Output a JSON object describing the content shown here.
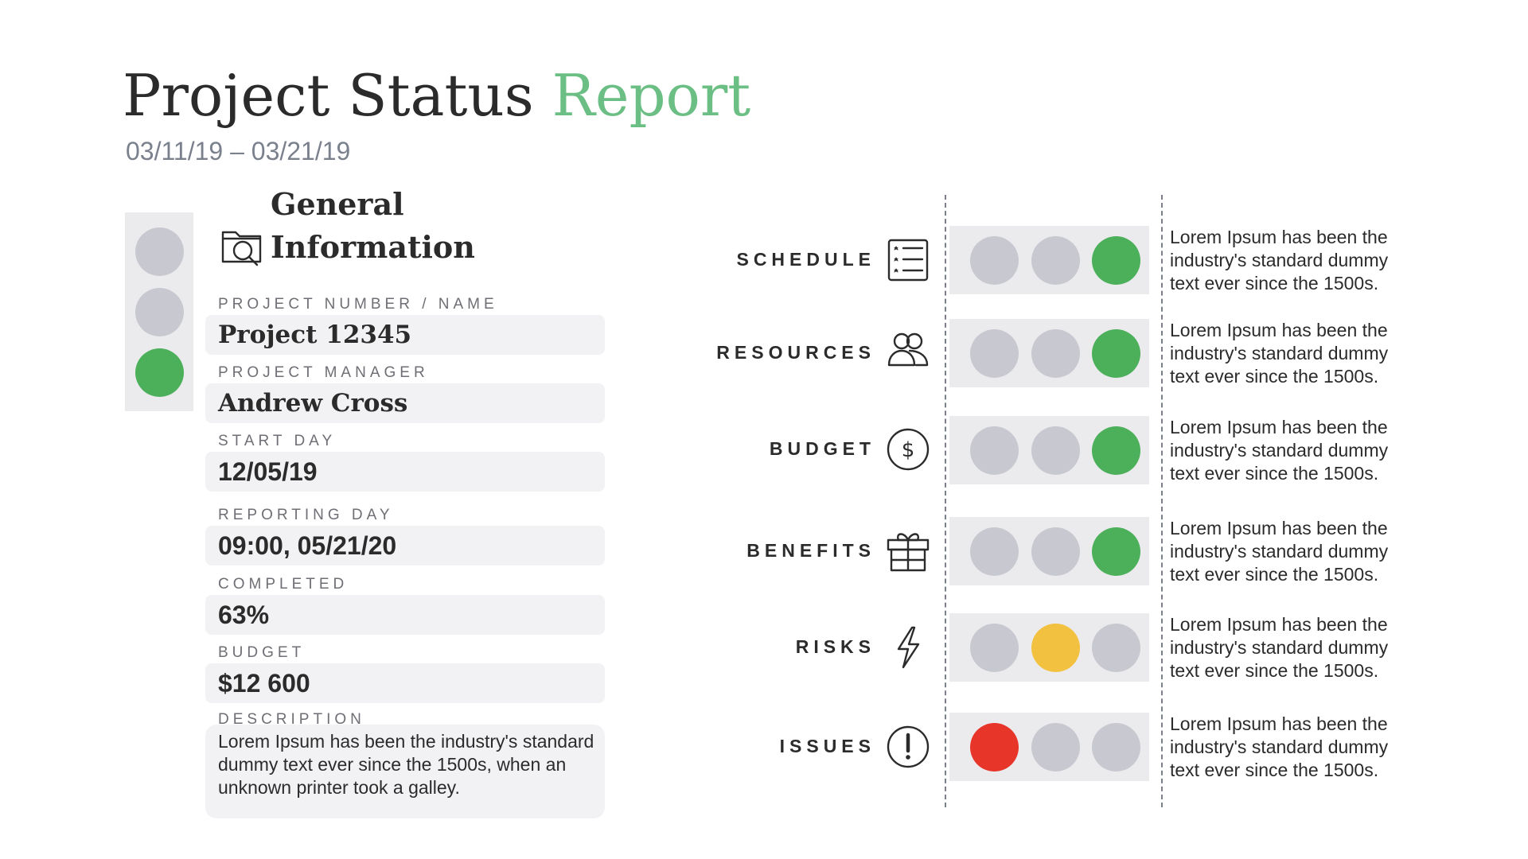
{
  "header": {
    "title_main": "Project Status",
    "title_accent": "Report",
    "date_range": "03/11/19 – 03/21/19"
  },
  "colors": {
    "accent": "#6cbf84",
    "light_off": "#c8c8d0",
    "green": "#4caf5a",
    "yellow": "#f2c13f",
    "red": "#e8352a"
  },
  "overall_status": {
    "lit": "green"
  },
  "general": {
    "heading_line1": "General",
    "heading_line2": "Information",
    "icon": "folder-search-icon",
    "fields": [
      {
        "label": "PROJECT NUMBER / NAME",
        "value": "Project 12345"
      },
      {
        "label": "PROJECT MANAGER",
        "value": "Andrew Cross"
      },
      {
        "label": "START DAY",
        "value": "12/05/19"
      },
      {
        "label": "REPORTING DAY",
        "value": "09:00, 05/21/20"
      },
      {
        "label": "COMPLETED",
        "value": "63%"
      },
      {
        "label": "BUDGET",
        "value": "$12 600"
      }
    ],
    "description_label": "DESCRIPTION",
    "description": "Lorem Ipsum has been the industry's standard dummy text ever since the 1500s, when an unknown printer took a galley."
  },
  "status_rows": [
    {
      "label": "SCHEDULE",
      "icon": "checklist-icon",
      "lit": "green",
      "text": "Lorem Ipsum has been the industry's standard dummy text ever since the 1500s."
    },
    {
      "label": "RESOURCES",
      "icon": "people-icon",
      "lit": "green",
      "text": "Lorem Ipsum has been the industry's standard dummy text ever since the 1500s."
    },
    {
      "label": "BUDGET",
      "icon": "dollar-icon",
      "lit": "green",
      "text": "Lorem Ipsum has been the industry's standard dummy text ever since the 1500s."
    },
    {
      "label": "BENEFITS",
      "icon": "gift-icon",
      "lit": "green",
      "text": "Lorem Ipsum has been the industry's standard dummy text ever since the 1500s."
    },
    {
      "label": "RISKS",
      "icon": "lightning-icon",
      "lit": "yellow",
      "text": "Lorem Ipsum has been the industry's standard dummy text ever since the 1500s."
    },
    {
      "label": "ISSUES",
      "icon": "exclamation-icon",
      "lit": "red",
      "text": "Lorem Ipsum has been the industry's standard dummy text ever since the 1500s."
    }
  ]
}
